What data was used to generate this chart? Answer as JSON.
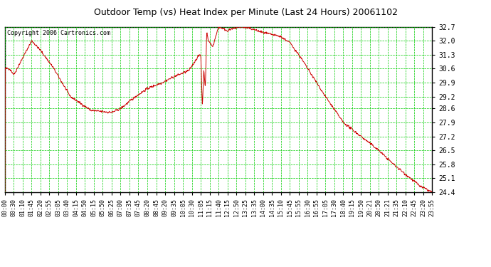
{
  "title": "Outdoor Temp (vs) Heat Index per Minute (Last 24 Hours) 20061102",
  "copyright": "Copyright 2006 Cartronics.com",
  "background_color": "#ffffff",
  "plot_bg_color": "#ffffff",
  "line_color": "#cc0000",
  "grid_major_color": "#00cc00",
  "grid_minor_color": "#00cc00",
  "yticks": [
    24.4,
    25.1,
    25.8,
    26.5,
    27.2,
    27.9,
    28.6,
    29.2,
    29.9,
    30.6,
    31.3,
    32.0,
    32.7
  ],
  "ymin": 24.4,
  "ymax": 32.7,
  "xtick_labels": [
    "00:00",
    "00:30",
    "01:10",
    "01:45",
    "02:20",
    "02:55",
    "03:05",
    "03:40",
    "04:15",
    "04:50",
    "05:15",
    "05:50",
    "06:25",
    "07:00",
    "07:35",
    "07:45",
    "08:20",
    "08:45",
    "09:20",
    "09:35",
    "10:05",
    "10:30",
    "11:05",
    "11:15",
    "11:40",
    "12:15",
    "12:50",
    "13:25",
    "13:35",
    "14:00",
    "14:35",
    "15:10",
    "15:45",
    "15:55",
    "16:30",
    "16:55",
    "17:05",
    "17:30",
    "18:40",
    "19:15",
    "19:50",
    "20:21",
    "20:50",
    "21:21",
    "21:35",
    "22:10",
    "22:45",
    "23:20",
    "23:55"
  ],
  "title_fontsize": 9,
  "copyright_fontsize": 6,
  "tick_fontsize": 6,
  "ytick_fontsize": 7
}
